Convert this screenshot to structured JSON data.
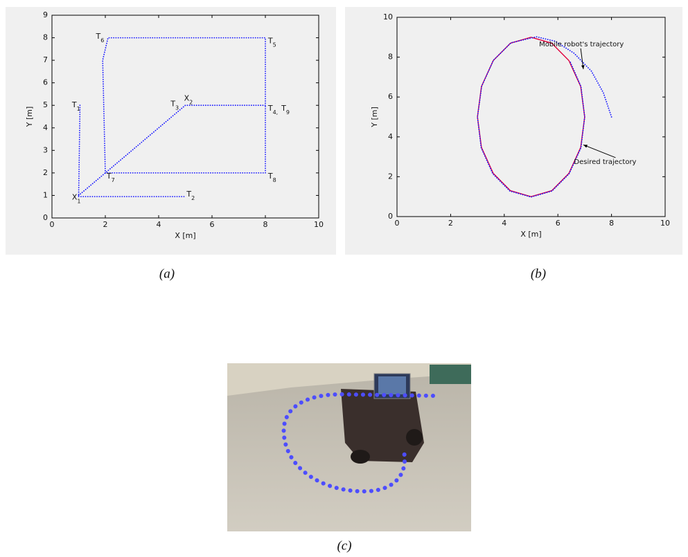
{
  "chart_data": [
    {
      "type": "line",
      "xlabel": "X [m]",
      "ylabel": "Y [m]",
      "xlim": [
        0,
        10
      ],
      "xticks": [
        0,
        2,
        4,
        6,
        8,
        10
      ],
      "ylim": [
        0,
        9
      ],
      "yticks": [
        0,
        1,
        2,
        3,
        4,
        5,
        6,
        7,
        8,
        9
      ],
      "series": [
        {
          "color": "#1a1aff",
          "style": "dotted",
          "x": [
            1.05,
            1.05,
            1.0,
            5.0,
            null,
            1.0,
            2.0,
            4.8,
            5.0,
            8.0,
            8.0,
            2.1,
            1.9,
            2.0,
            8.0,
            8.0
          ],
          "values": [
            5.0,
            4.85,
            0.95,
            0.95,
            null,
            1.0,
            2.0,
            4.8,
            5.0,
            5.0,
            8.0,
            8.0,
            7.0,
            2.0,
            2.0,
            5.0
          ]
        }
      ],
      "annotations": [
        {
          "text": "T",
          "sub": "1",
          "x": 0.75,
          "y": 5.0
        },
        {
          "text": "T",
          "sub": "2",
          "x": 5.05,
          "y": 1.05
        },
        {
          "text": "T",
          "sub": "3",
          "x": 4.45,
          "y": 5.05
        },
        {
          "text": "X",
          "sub": "2",
          "x": 4.95,
          "y": 5.3
        },
        {
          "text": "T",
          "sub": "4,",
          "x": 8.1,
          "y": 4.85
        },
        {
          "text": "T",
          "sub": "9",
          "x": 8.6,
          "y": 4.85
        },
        {
          "text": "T",
          "sub": "5",
          "x": 8.1,
          "y": 7.85
        },
        {
          "text": "T",
          "sub": "6",
          "x": 1.65,
          "y": 8.05
        },
        {
          "text": "T",
          "sub": "7",
          "x": 2.05,
          "y": 1.85
        },
        {
          "text": "T",
          "sub": "8",
          "x": 8.1,
          "y": 1.85
        },
        {
          "text": "X",
          "sub": "1",
          "x": 0.75,
          "y": 0.9
        }
      ]
    },
    {
      "type": "line",
      "xlabel": "X [m]",
      "ylabel": "Y [m]",
      "xlim": [
        0,
        10
      ],
      "xticks": [
        0,
        2,
        4,
        6,
        8,
        10
      ],
      "ylim": [
        0,
        10
      ],
      "yticks": [
        0,
        2,
        4,
        6,
        8,
        10
      ],
      "series": [
        {
          "color": "#e0003c",
          "style": "solid",
          "x": [
            5.0,
            4.23,
            3.59,
            3.15,
            3.0,
            3.15,
            3.59,
            4.23,
            5.0,
            5.77,
            6.41,
            6.85,
            7.0,
            6.85,
            6.41,
            5.77,
            5.0
          ],
          "values": [
            9.0,
            8.7,
            7.83,
            6.53,
            5.0,
            3.47,
            2.17,
            1.3,
            1.0,
            1.3,
            2.17,
            3.47,
            5.0,
            6.53,
            7.83,
            8.7,
            9.0
          ]
        },
        {
          "color": "#1a1aff",
          "style": "dotted",
          "x": [
            8.0,
            7.7,
            7.25,
            6.6,
            5.9,
            5.2,
            4.25,
            3.6,
            3.16,
            3.0,
            3.14,
            3.57,
            4.21,
            5.0,
            5.78,
            6.42,
            6.86,
            7.0,
            6.86,
            6.45
          ],
          "values": [
            5.0,
            6.2,
            7.3,
            8.2,
            8.8,
            9.02,
            8.72,
            7.85,
            6.55,
            5.0,
            3.45,
            2.15,
            1.28,
            0.98,
            1.28,
            2.15,
            3.45,
            5.0,
            6.53,
            7.8
          ]
        }
      ],
      "annotations": [
        {
          "text": "Mobile robot's trajectory",
          "x": 5.3,
          "y": 8.65,
          "ax": 6.95,
          "ay": 7.4
        },
        {
          "text": "Desired trajectory",
          "x": 6.6,
          "y": 2.75,
          "ax": 6.95,
          "ay": 3.6
        }
      ]
    }
  ],
  "captions": [
    "(a)",
    "(b)",
    "(c)"
  ]
}
